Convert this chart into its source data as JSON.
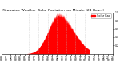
{
  "title": "Milwaukee Weather Solar Radiation per Minute (24 Hours)",
  "bar_color": "#ff0000",
  "bg_color": "#ffffff",
  "legend_color": "#ff0000",
  "grid_color": "#bbbbbb",
  "n_points": 1440,
  "peak_minute": 740,
  "peak_value": 1.0,
  "ylim": [
    0,
    1.0
  ],
  "xlim": [
    0,
    1440
  ],
  "yticks": [
    0.2,
    0.4,
    0.6,
    0.8,
    1.0
  ],
  "xtick_step": 60,
  "grid_lines_x": [
    360,
    480,
    600,
    720,
    840,
    960,
    1080
  ],
  "title_fontsize": 3.2,
  "tick_fontsize": 2.2,
  "legend_fontsize": 2.5
}
